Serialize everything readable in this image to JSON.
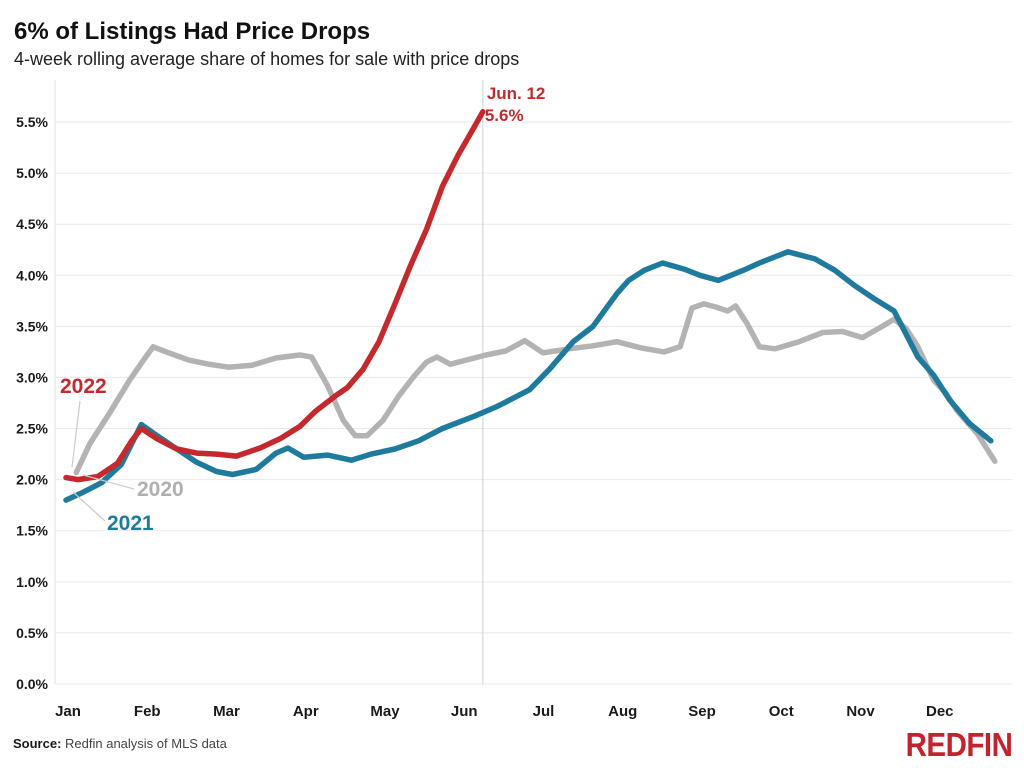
{
  "header": {
    "title": "6% of Listings Had Price Drops",
    "subtitle": "4-week rolling average share of homes for sale with price drops"
  },
  "footer": {
    "source_label": "Source:",
    "source_text": " Redfin analysis of MLS data",
    "logo_text": "REDFIN"
  },
  "colors": {
    "red": "#c4292e",
    "blue": "#1e7b9d",
    "gray": "#b3b3b3",
    "label_gray": "#b0b0b0",
    "grid": "#eaeaea",
    "axis_line": "#e0e0e0",
    "marker_line": "#d8d8d8",
    "leader": "#cccccc",
    "axis_text": "#1a1a1a",
    "logo_red": "#c2232e"
  },
  "chart_data": {
    "type": "line",
    "title": "6% of Listings Had Price Drops",
    "subtitle": "4-week rolling average share of homes for sale with price drops",
    "xlabel": "",
    "ylabel": "",
    "grid": "horizontal",
    "legend_position": "inline-labels",
    "x_axis": {
      "mode": "months",
      "tick_labels": [
        "Jan",
        "Feb",
        "Mar",
        "Apr",
        "May",
        "Jun",
        "Jul",
        "Aug",
        "Sep",
        "Oct",
        "Nov",
        "Dec"
      ]
    },
    "y_axis": {
      "min": 0.0,
      "max": 5.5,
      "step": 0.5,
      "tick_labels": [
        "0.0%",
        "0.5%",
        "1.0%",
        "1.5%",
        "2.0%",
        "2.5%",
        "3.0%",
        "3.5%",
        "4.0%",
        "4.5%",
        "5.0%",
        "5.5%"
      ]
    },
    "annotation": {
      "line1": "Jun. 12",
      "line2": "5.6%",
      "x_month": 5.31,
      "color_key": "red"
    },
    "series": [
      {
        "name": "2020",
        "color_key": "gray",
        "points": [
          [
            0.18,
            2.07
          ],
          [
            0.35,
            2.35
          ],
          [
            0.6,
            2.65
          ],
          [
            0.85,
            2.97
          ],
          [
            1.0,
            3.14
          ],
          [
            1.15,
            3.3
          ],
          [
            1.35,
            3.24
          ],
          [
            1.6,
            3.17
          ],
          [
            1.85,
            3.13
          ],
          [
            2.1,
            3.1
          ],
          [
            2.4,
            3.12
          ],
          [
            2.7,
            3.19
          ],
          [
            3.0,
            3.22
          ],
          [
            3.15,
            3.2
          ],
          [
            3.35,
            2.92
          ],
          [
            3.55,
            2.58
          ],
          [
            3.7,
            2.43
          ],
          [
            3.85,
            2.43
          ],
          [
            4.05,
            2.58
          ],
          [
            4.25,
            2.82
          ],
          [
            4.45,
            3.02
          ],
          [
            4.6,
            3.15
          ],
          [
            4.73,
            3.2
          ],
          [
            4.9,
            3.13
          ],
          [
            5.05,
            3.16
          ],
          [
            5.35,
            3.22
          ],
          [
            5.6,
            3.26
          ],
          [
            5.84,
            3.36
          ],
          [
            6.07,
            3.24
          ],
          [
            6.4,
            3.28
          ],
          [
            6.7,
            3.31
          ],
          [
            7.0,
            3.35
          ],
          [
            7.3,
            3.29
          ],
          [
            7.6,
            3.25
          ],
          [
            7.8,
            3.3
          ],
          [
            7.95,
            3.68
          ],
          [
            8.1,
            3.72
          ],
          [
            8.25,
            3.69
          ],
          [
            8.4,
            3.65
          ],
          [
            8.5,
            3.7
          ],
          [
            8.65,
            3.52
          ],
          [
            8.8,
            3.3
          ],
          [
            9.0,
            3.28
          ],
          [
            9.3,
            3.35
          ],
          [
            9.6,
            3.44
          ],
          [
            9.85,
            3.45
          ],
          [
            10.1,
            3.39
          ],
          [
            10.35,
            3.5
          ],
          [
            10.5,
            3.57
          ],
          [
            10.65,
            3.48
          ],
          [
            10.8,
            3.3
          ],
          [
            11.0,
            2.97
          ],
          [
            11.15,
            2.85
          ],
          [
            11.3,
            2.67
          ],
          [
            11.55,
            2.45
          ],
          [
            11.77,
            2.18
          ]
        ]
      },
      {
        "name": "2021",
        "color_key": "blue",
        "points": [
          [
            0.05,
            1.8
          ],
          [
            0.25,
            1.87
          ],
          [
            0.5,
            1.97
          ],
          [
            0.75,
            2.15
          ],
          [
            1.0,
            2.54
          ],
          [
            1.2,
            2.43
          ],
          [
            1.45,
            2.3
          ],
          [
            1.7,
            2.17
          ],
          [
            1.95,
            2.08
          ],
          [
            2.15,
            2.05
          ],
          [
            2.45,
            2.1
          ],
          [
            2.7,
            2.26
          ],
          [
            2.85,
            2.31
          ],
          [
            3.05,
            2.22
          ],
          [
            3.35,
            2.24
          ],
          [
            3.65,
            2.19
          ],
          [
            3.9,
            2.25
          ],
          [
            4.2,
            2.3
          ],
          [
            4.5,
            2.38
          ],
          [
            4.8,
            2.5
          ],
          [
            5.2,
            2.62
          ],
          [
            5.5,
            2.72
          ],
          [
            5.9,
            2.88
          ],
          [
            6.15,
            3.08
          ],
          [
            6.45,
            3.35
          ],
          [
            6.7,
            3.5
          ],
          [
            7.0,
            3.82
          ],
          [
            7.15,
            3.95
          ],
          [
            7.35,
            4.05
          ],
          [
            7.58,
            4.12
          ],
          [
            7.85,
            4.06
          ],
          [
            8.05,
            4.0
          ],
          [
            8.28,
            3.95
          ],
          [
            8.6,
            4.05
          ],
          [
            8.8,
            4.12
          ],
          [
            9.16,
            4.23
          ],
          [
            9.5,
            4.16
          ],
          [
            9.75,
            4.05
          ],
          [
            10.0,
            3.9
          ],
          [
            10.25,
            3.77
          ],
          [
            10.5,
            3.65
          ],
          [
            10.8,
            3.2
          ],
          [
            11.0,
            3.02
          ],
          [
            11.2,
            2.78
          ],
          [
            11.45,
            2.55
          ],
          [
            11.72,
            2.38
          ]
        ]
      },
      {
        "name": "2022",
        "color_key": "red",
        "points": [
          [
            0.05,
            2.02
          ],
          [
            0.2,
            2.0
          ],
          [
            0.45,
            2.03
          ],
          [
            0.7,
            2.16
          ],
          [
            0.88,
            2.38
          ],
          [
            1.0,
            2.5
          ],
          [
            1.2,
            2.4
          ],
          [
            1.45,
            2.3
          ],
          [
            1.7,
            2.26
          ],
          [
            1.95,
            2.25
          ],
          [
            2.2,
            2.23
          ],
          [
            2.5,
            2.31
          ],
          [
            2.75,
            2.4
          ],
          [
            3.0,
            2.52
          ],
          [
            3.2,
            2.67
          ],
          [
            3.45,
            2.82
          ],
          [
            3.6,
            2.9
          ],
          [
            3.8,
            3.08
          ],
          [
            4.0,
            3.35
          ],
          [
            4.2,
            3.72
          ],
          [
            4.4,
            4.1
          ],
          [
            4.6,
            4.45
          ],
          [
            4.8,
            4.87
          ],
          [
            5.0,
            5.18
          ],
          [
            5.15,
            5.38
          ],
          [
            5.31,
            5.6
          ]
        ]
      }
    ],
    "series_labels": [
      {
        "text": "2022",
        "color_key": "red",
        "x": 60,
        "y": 393,
        "leader": [
          80,
          401,
          72,
          467
        ]
      },
      {
        "text": "2020",
        "color_key": "label_gray",
        "x": 137,
        "y": 496,
        "leader": [
          83,
          475,
          134,
          489
        ]
      },
      {
        "text": "2021",
        "color_key": "blue",
        "x": 107,
        "y": 530,
        "leader": [
          73,
          492,
          105,
          521
        ]
      }
    ]
  }
}
